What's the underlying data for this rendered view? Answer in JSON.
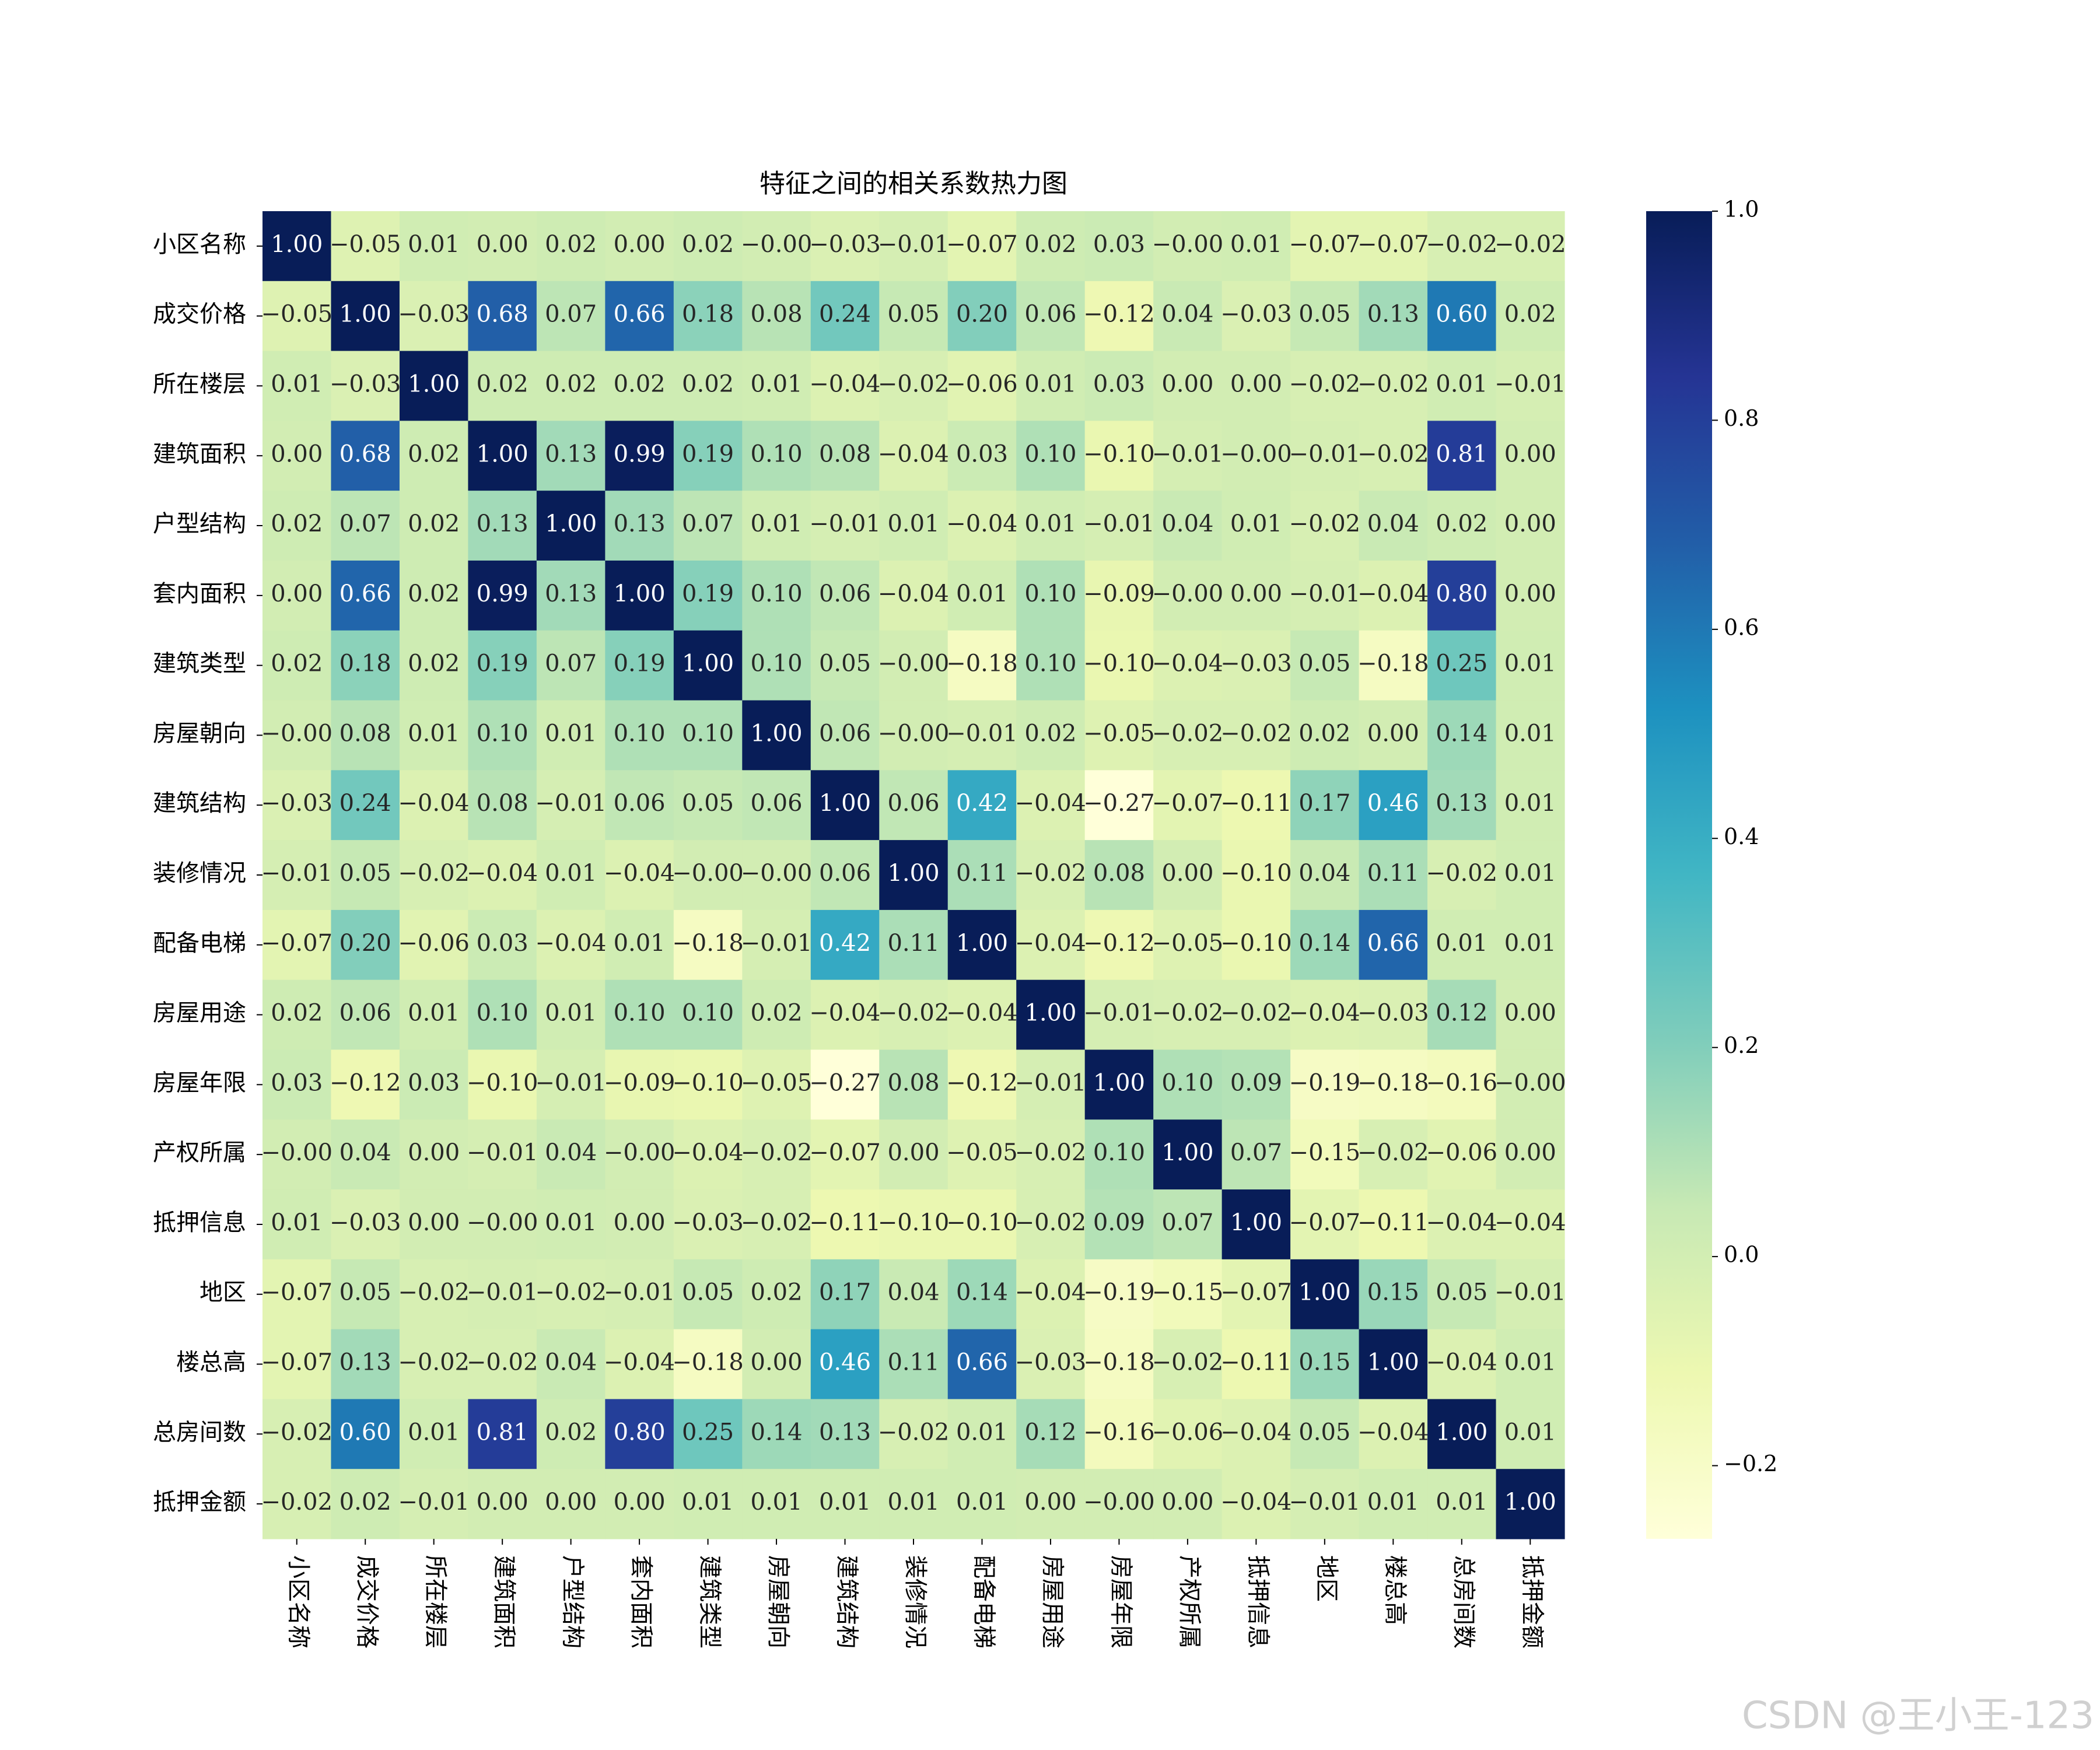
{
  "chart_data": {
    "type": "heatmap",
    "title": "特征之间的相关系数热力图",
    "labels": [
      "小区名称",
      "成交价格",
      "所在楼层",
      "建筑面积",
      "户型结构",
      "套内面积",
      "建筑类型",
      "房屋朝向",
      "建筑结构",
      "装修情况",
      "配备电梯",
      "房屋用途",
      "房屋年限",
      "产权所属",
      "抵押信息",
      "地区",
      "楼总高",
      "总房间数",
      "抵押金额"
    ],
    "values": [
      [
        1,
        -0.05,
        0.01,
        0,
        0.02,
        0,
        0.02,
        0,
        -0.03,
        -0.01,
        -0.07,
        0.02,
        0.03,
        0,
        0.01,
        -0.07,
        -0.07,
        -0.02,
        -0.02
      ],
      [
        -0.05,
        1,
        -0.03,
        0.68,
        0.07,
        0.66,
        0.18,
        0.08,
        0.24,
        0.05,
        0.2,
        0.06,
        -0.12,
        0.04,
        -0.03,
        0.05,
        0.13,
        0.6,
        0.02
      ],
      [
        0.01,
        -0.03,
        1,
        0.02,
        0.02,
        0.02,
        0.02,
        0.01,
        -0.04,
        -0.02,
        -0.06,
        0.01,
        0.03,
        0,
        0,
        -0.02,
        -0.02,
        0.01,
        -0.01
      ],
      [
        0,
        0.68,
        0.02,
        1,
        0.13,
        0.99,
        0.19,
        0.1,
        0.08,
        -0.04,
        0.03,
        0.1,
        -0.1,
        -0.01,
        0,
        -0.01,
        -0.02,
        0.81,
        0
      ],
      [
        0.02,
        0.07,
        0.02,
        0.13,
        1,
        0.13,
        0.07,
        0.01,
        -0.01,
        0.01,
        -0.04,
        0.01,
        -0.01,
        0.04,
        0.01,
        -0.02,
        0.04,
        0.02,
        0
      ],
      [
        0,
        0.66,
        0.02,
        0.99,
        0.13,
        1,
        0.19,
        0.1,
        0.06,
        -0.04,
        0.01,
        0.1,
        -0.09,
        0,
        0,
        -0.01,
        -0.04,
        0.8,
        0
      ],
      [
        0.02,
        0.18,
        0.02,
        0.19,
        0.07,
        0.19,
        1,
        0.1,
        0.05,
        0,
        -0.18,
        0.1,
        -0.1,
        -0.04,
        -0.03,
        0.05,
        -0.18,
        0.25,
        0.01
      ],
      [
        0,
        0.08,
        0.01,
        0.1,
        0.01,
        0.1,
        0.1,
        1,
        0.06,
        0,
        -0.01,
        0.02,
        -0.05,
        -0.02,
        -0.02,
        0.02,
        0,
        0.14,
        0.01
      ],
      [
        -0.03,
        0.24,
        -0.04,
        0.08,
        -0.01,
        0.06,
        0.05,
        0.06,
        1,
        0.06,
        0.42,
        -0.04,
        -0.27,
        -0.07,
        -0.11,
        0.17,
        0.46,
        0.13,
        0.01
      ],
      [
        -0.01,
        0.05,
        -0.02,
        -0.04,
        0.01,
        -0.04,
        0,
        0,
        0.06,
        1,
        0.11,
        -0.02,
        0.08,
        0,
        -0.1,
        0.04,
        0.11,
        -0.02,
        0.01
      ],
      [
        -0.07,
        0.2,
        -0.06,
        0.03,
        -0.04,
        0.01,
        -0.18,
        -0.01,
        0.42,
        0.11,
        1,
        -0.04,
        -0.12,
        -0.05,
        -0.1,
        0.14,
        0.66,
        0.01,
        0.01
      ],
      [
        0.02,
        0.06,
        0.01,
        0.1,
        0.01,
        0.1,
        0.1,
        0.02,
        -0.04,
        -0.02,
        -0.04,
        1,
        -0.01,
        -0.02,
        -0.02,
        -0.04,
        -0.03,
        0.12,
        0
      ],
      [
        0.03,
        -0.12,
        0.03,
        -0.1,
        -0.01,
        -0.09,
        -0.1,
        -0.05,
        -0.27,
        0.08,
        -0.12,
        -0.01,
        1,
        0.1,
        0.09,
        -0.19,
        -0.18,
        -0.16,
        0
      ],
      [
        0,
        0.04,
        0,
        -0.01,
        0.04,
        0,
        -0.04,
        -0.02,
        -0.07,
        0,
        -0.05,
        -0.02,
        0.1,
        1,
        0.07,
        -0.15,
        -0.02,
        -0.06,
        0
      ],
      [
        0.01,
        -0.03,
        0,
        0,
        0.01,
        0,
        -0.03,
        -0.02,
        -0.11,
        -0.1,
        -0.1,
        -0.02,
        0.09,
        0.07,
        1,
        -0.07,
        -0.11,
        -0.04,
        -0.04
      ],
      [
        -0.07,
        0.05,
        -0.02,
        -0.01,
        -0.02,
        -0.01,
        0.05,
        0.02,
        0.17,
        0.04,
        0.14,
        -0.04,
        -0.19,
        -0.15,
        -0.07,
        1,
        0.15,
        0.05,
        -0.01
      ],
      [
        -0.07,
        0.13,
        -0.02,
        -0.02,
        0.04,
        -0.04,
        -0.18,
        0,
        0.46,
        0.11,
        0.66,
        -0.03,
        -0.18,
        -0.02,
        -0.11,
        0.15,
        1,
        -0.04,
        0.01
      ],
      [
        -0.02,
        0.6,
        0.01,
        0.81,
        0.02,
        0.8,
        0.25,
        0.14,
        0.13,
        -0.02,
        0.01,
        0.12,
        -0.16,
        -0.06,
        -0.04,
        0.05,
        -0.04,
        1,
        0.01
      ],
      [
        -0.02,
        0.02,
        -0.01,
        0,
        0,
        0,
        0.01,
        0.01,
        0.01,
        0.01,
        0.01,
        0,
        0,
        0,
        -0.04,
        -0.01,
        0.01,
        0.01,
        1
      ]
    ],
    "value_labels": [
      [
        "1.00",
        "−0.05",
        "0.01",
        "0.00",
        "0.02",
        "0.00",
        "0.02",
        "−0.00",
        "−0.03",
        "−0.01",
        "−0.07",
        "0.02",
        "0.03",
        "−0.00",
        "0.01",
        "−0.07",
        "−0.07",
        "−0.02",
        "−0.02"
      ],
      [
        "−0.05",
        "1.00",
        "−0.03",
        "0.68",
        "0.07",
        "0.66",
        "0.18",
        "0.08",
        "0.24",
        "0.05",
        "0.20",
        "0.06",
        "−0.12",
        "0.04",
        "−0.03",
        "0.05",
        "0.13",
        "0.60",
        "0.02"
      ],
      [
        "0.01",
        "−0.03",
        "1.00",
        "0.02",
        "0.02",
        "0.02",
        "0.02",
        "0.01",
        "−0.04",
        "−0.02",
        "−0.06",
        "0.01",
        "0.03",
        "0.00",
        "0.00",
        "−0.02",
        "−0.02",
        "0.01",
        "−0.01"
      ],
      [
        "0.00",
        "0.68",
        "0.02",
        "1.00",
        "0.13",
        "0.99",
        "0.19",
        "0.10",
        "0.08",
        "−0.04",
        "0.03",
        "0.10",
        "−0.10",
        "−0.01",
        "−0.00",
        "−0.01",
        "−0.02",
        "0.81",
        "0.00"
      ],
      [
        "0.02",
        "0.07",
        "0.02",
        "0.13",
        "1.00",
        "0.13",
        "0.07",
        "0.01",
        "−0.01",
        "0.01",
        "−0.04",
        "0.01",
        "−0.01",
        "0.04",
        "0.01",
        "−0.02",
        "0.04",
        "0.02",
        "0.00"
      ],
      [
        "0.00",
        "0.66",
        "0.02",
        "0.99",
        "0.13",
        "1.00",
        "0.19",
        "0.10",
        "0.06",
        "−0.04",
        "0.01",
        "0.10",
        "−0.09",
        "−0.00",
        "0.00",
        "−0.01",
        "−0.04",
        "0.80",
        "0.00"
      ],
      [
        "0.02",
        "0.18",
        "0.02",
        "0.19",
        "0.07",
        "0.19",
        "1.00",
        "0.10",
        "0.05",
        "−0.00",
        "−0.18",
        "0.10",
        "−0.10",
        "−0.04",
        "−0.03",
        "0.05",
        "−0.18",
        "0.25",
        "0.01"
      ],
      [
        "−0.00",
        "0.08",
        "0.01",
        "0.10",
        "0.01",
        "0.10",
        "0.10",
        "1.00",
        "0.06",
        "−0.00",
        "−0.01",
        "0.02",
        "−0.05",
        "−0.02",
        "−0.02",
        "0.02",
        "0.00",
        "0.14",
        "0.01"
      ],
      [
        "−0.03",
        "0.24",
        "−0.04",
        "0.08",
        "−0.01",
        "0.06",
        "0.05",
        "0.06",
        "1.00",
        "0.06",
        "0.42",
        "−0.04",
        "−0.27",
        "−0.07",
        "−0.11",
        "0.17",
        "0.46",
        "0.13",
        "0.01"
      ],
      [
        "−0.01",
        "0.05",
        "−0.02",
        "−0.04",
        "0.01",
        "−0.04",
        "−0.00",
        "−0.00",
        "0.06",
        "1.00",
        "0.11",
        "−0.02",
        "0.08",
        "0.00",
        "−0.10",
        "0.04",
        "0.11",
        "−0.02",
        "0.01"
      ],
      [
        "−0.07",
        "0.20",
        "−0.06",
        "0.03",
        "−0.04",
        "0.01",
        "−0.18",
        "−0.01",
        "0.42",
        "0.11",
        "1.00",
        "−0.04",
        "−0.12",
        "−0.05",
        "−0.10",
        "0.14",
        "0.66",
        "0.01",
        "0.01"
      ],
      [
        "0.02",
        "0.06",
        "0.01",
        "0.10",
        "0.01",
        "0.10",
        "0.10",
        "0.02",
        "−0.04",
        "−0.02",
        "−0.04",
        "1.00",
        "−0.01",
        "−0.02",
        "−0.02",
        "−0.04",
        "−0.03",
        "0.12",
        "0.00"
      ],
      [
        "0.03",
        "−0.12",
        "0.03",
        "−0.10",
        "−0.01",
        "−0.09",
        "−0.10",
        "−0.05",
        "−0.27",
        "0.08",
        "−0.12",
        "−0.01",
        "1.00",
        "0.10",
        "0.09",
        "−0.19",
        "−0.18",
        "−0.16",
        "−0.00"
      ],
      [
        "−0.00",
        "0.04",
        "0.00",
        "−0.01",
        "0.04",
        "−0.00",
        "−0.04",
        "−0.02",
        "−0.07",
        "0.00",
        "−0.05",
        "−0.02",
        "0.10",
        "1.00",
        "0.07",
        "−0.15",
        "−0.02",
        "−0.06",
        "0.00"
      ],
      [
        "0.01",
        "−0.03",
        "0.00",
        "−0.00",
        "0.01",
        "0.00",
        "−0.03",
        "−0.02",
        "−0.11",
        "−0.10",
        "−0.10",
        "−0.02",
        "0.09",
        "0.07",
        "1.00",
        "−0.07",
        "−0.11",
        "−0.04",
        "−0.04"
      ],
      [
        "−0.07",
        "0.05",
        "−0.02",
        "−0.01",
        "−0.02",
        "−0.01",
        "0.05",
        "0.02",
        "0.17",
        "0.04",
        "0.14",
        "−0.04",
        "−0.19",
        "−0.15",
        "−0.07",
        "1.00",
        "0.15",
        "0.05",
        "−0.01"
      ],
      [
        "−0.07",
        "0.13",
        "−0.02",
        "−0.02",
        "0.04",
        "−0.04",
        "−0.18",
        "0.00",
        "0.46",
        "0.11",
        "0.66",
        "−0.03",
        "−0.18",
        "−0.02",
        "−0.11",
        "0.15",
        "1.00",
        "−0.04",
        "0.01"
      ],
      [
        "−0.02",
        "0.60",
        "0.01",
        "0.81",
        "0.02",
        "0.80",
        "0.25",
        "0.14",
        "0.13",
        "−0.02",
        "0.01",
        "0.12",
        "−0.16",
        "−0.06",
        "−0.04",
        "0.05",
        "−0.04",
        "1.00",
        "0.01"
      ],
      [
        "−0.02",
        "0.02",
        "−0.01",
        "0.00",
        "0.00",
        "0.00",
        "0.01",
        "0.01",
        "0.01",
        "0.01",
        "0.01",
        "0.00",
        "−0.00",
        "0.00",
        "−0.04",
        "−0.01",
        "0.01",
        "0.01",
        "1.00"
      ]
    ],
    "colormap": "YlGnBu",
    "clim": [
      -0.27,
      1
    ],
    "cticks": [
      {
        "value": 1,
        "label": "1.0"
      },
      {
        "value": 0.8,
        "label": "0.8"
      },
      {
        "value": 0.6,
        "label": "0.6"
      },
      {
        "value": 0.4,
        "label": "0.4"
      },
      {
        "value": 0.2,
        "label": "0.2"
      },
      {
        "value": 0,
        "label": "0.0"
      },
      {
        "value": -0.2,
        "label": "−0.2"
      }
    ]
  },
  "watermark": "CSDN @王小王-123"
}
